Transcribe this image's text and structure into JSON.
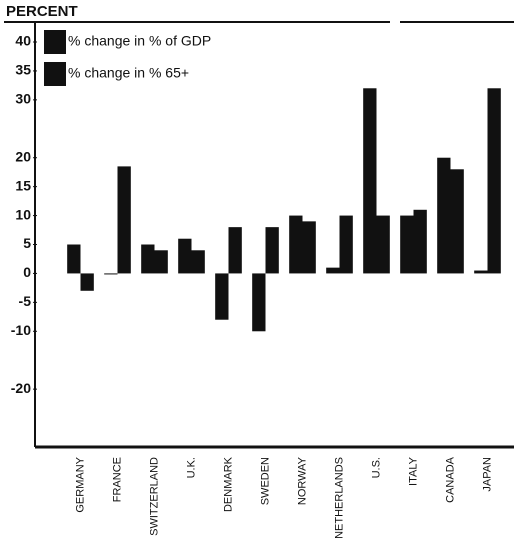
{
  "chart_data": {
    "type": "bar",
    "title": "PERCENT",
    "categories": [
      "GERMANY",
      "FRANCE",
      "SWITZERLAND",
      "U.K.",
      "DENMARK",
      "SWEDEN",
      "NORWAY",
      "NETHERLANDS",
      "U.S.",
      "ITALY",
      "CANADA",
      "JAPAN"
    ],
    "series": [
      {
        "name": "% change in % of GDP",
        "color": "#111111",
        "values": [
          5,
          0,
          5,
          6,
          -8,
          -10,
          10,
          1,
          32,
          10,
          20,
          0.5
        ]
      },
      {
        "name": "% change in % 65+",
        "color": "#111111",
        "values": [
          -3,
          18.5,
          4,
          4,
          8,
          8,
          9,
          10,
          10,
          11,
          18,
          32
        ]
      }
    ],
    "ylim": [
      -30,
      40
    ],
    "yticks": [
      40,
      35,
      30,
      20,
      15,
      10,
      5,
      0,
      -5,
      -10,
      -20
    ],
    "grid": false,
    "legend": "upper left"
  }
}
